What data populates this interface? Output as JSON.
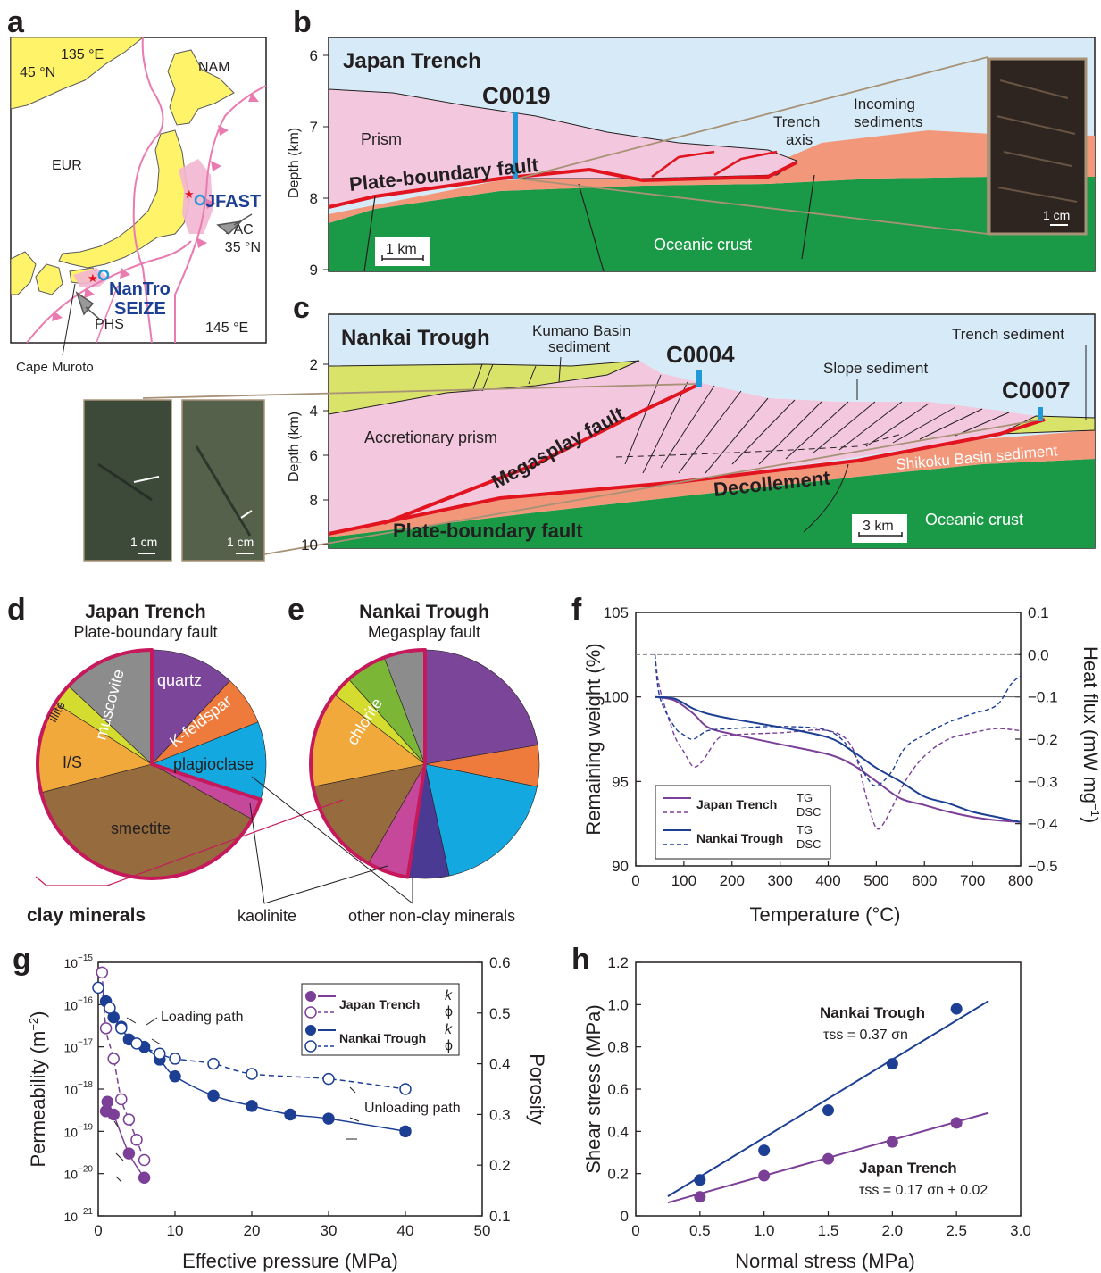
{
  "panels": {
    "a": {
      "label": "a",
      "lon_top": "135 °E",
      "lat_top": "45 °N",
      "lat_mid": "35 °N",
      "lon_bottom": "145 °E",
      "plates": [
        "NAM",
        "EUR",
        "PAC",
        "PHS"
      ],
      "site_jfast": "JFAST",
      "site_nantro_1": "NanTro",
      "site_nantro_2": "SEIZE",
      "cape": "Cape Muroto"
    },
    "b": {
      "label": "b",
      "title": "Japan Trench",
      "ylabel": "Depth (km)",
      "yticks": [
        "6",
        "7",
        "8",
        "9"
      ],
      "site": "C0019",
      "labels": {
        "prism": "Prism",
        "fault": "Plate-boundary fault",
        "axis_1": "Trench",
        "axis_2": "axis",
        "incoming_1": "Incoming",
        "incoming_2": "sediments",
        "crust": "Oceanic crust",
        "scale": "1 km",
        "photo_scale": "1 cm"
      }
    },
    "c": {
      "label": "c",
      "title": "Nankai Trough",
      "ylabel": "Depth (km)",
      "yticks": [
        "2",
        "4",
        "6",
        "8",
        "10"
      ],
      "sites": [
        "C0004",
        "C0007"
      ],
      "labels": {
        "kumano_1": "Kumano Basin",
        "kumano_2": "sediment",
        "slope": "Slope sediment",
        "trench_sed": "Trench sediment",
        "prism": "Accretionary prism",
        "megasplay": "Megasplay fault",
        "decollement": "Decollement",
        "shikoku": "Shikoku Basin sediment",
        "plate_boundary": "Plate-boundary fault",
        "crust": "Oceanic crust",
        "scale": "3 km",
        "photo_scale": "1 cm"
      }
    },
    "d": {
      "label": "d",
      "title": "Japan Trench",
      "subtitle": "Plate-boundary fault",
      "slice_labels": [
        "quartz",
        "K-feldspar",
        "plagioclase",
        "smectite",
        "I/S",
        "illite",
        "muscovite"
      ]
    },
    "e": {
      "label": "e",
      "title": "Nankai Trough",
      "subtitle": "Megasplay fault",
      "slice_labels": [
        "chlorite"
      ]
    },
    "de_callouts": {
      "clay": "clay minerals",
      "kaolinite": "kaolinite",
      "other": "other non-clay minerals"
    },
    "f": {
      "label": "f",
      "xlabel": "Temperature (°C)",
      "ylabel_left": "Remaining weight (%)",
      "ylabel_right": "Heat flux (mW mg",
      "ylabel_right_sup": "−1",
      "ylabel_right_end": ")",
      "xticks": [
        "0",
        "100",
        "200",
        "300",
        "400",
        "500",
        "600",
        "700",
        "800"
      ],
      "yticks_left": [
        "90",
        "95",
        "100",
        "105"
      ],
      "yticks_right": [
        "−0.5",
        "−0.4",
        "−0.3",
        "−0.2",
        "−0.1",
        "0.0",
        "0.1"
      ],
      "legend": {
        "jt": "Japan Trench",
        "nt": "Nankai Trough",
        "tg": "TG",
        "dsc": "DSC"
      }
    },
    "g": {
      "label": "g",
      "xlabel": "Effective pressure (MPa)",
      "ylabel_left": "Permeability (m",
      "ylabel_left_sup": "−2",
      "ylabel_left_end": ")",
      "ylabel_right": "Porosity",
      "xticks": [
        "0",
        "10",
        "20",
        "30",
        "40",
        "50"
      ],
      "yticks_left_exp": [
        "−21",
        "−20",
        "−19",
        "−18",
        "−17",
        "−16",
        "−15"
      ],
      "yticks_right": [
        "0.1",
        "0.2",
        "0.3",
        "0.4",
        "0.5",
        "0.6"
      ],
      "loading": "Loading path",
      "unloading": "Unloading path",
      "legend": {
        "jt": "Japan Trench",
        "nt": "Nankai Trough",
        "k": "k",
        "phi": "ϕ"
      }
    },
    "h": {
      "label": "h",
      "xlabel": "Normal stress (MPa)",
      "ylabel": "Shear stress (MPa)",
      "xticks": [
        "0",
        "0.5",
        "1.0",
        "1.5",
        "2.0",
        "2.5",
        "3.0"
      ],
      "yticks": [
        "0",
        "0.2",
        "0.4",
        "0.6",
        "0.8",
        "1.0",
        "1.2"
      ],
      "nt_name": "Nankai Trough",
      "nt_eq": "τss = 0.37 σn",
      "jt_name": "Japan Trench",
      "jt_eq": "τss = 0.17 σn + 0.02"
    }
  },
  "colors": {
    "jt": "#7b3f98",
    "nt": "#1c3f94",
    "fault": "#e1141f",
    "site": "#1f9ad6",
    "prism": "#f3c8de",
    "crust": "#1a9a47",
    "sediment": "#f2977a",
    "basin": "#d9e36a",
    "sky": "#d6ebf7",
    "land": "#fff36a",
    "clay": "#c6195c"
  },
  "chart_data": [
    {
      "panel": "d",
      "type": "pie",
      "title": "Japan Trench",
      "subtitle": "Plate-boundary fault",
      "slices": [
        {
          "label": "quartz",
          "value": 12,
          "color": "#7b469a"
        },
        {
          "label": "K-feldspar",
          "value": 7,
          "color": "#ee7a3c"
        },
        {
          "label": "plagioclase",
          "value": 11,
          "color": "#13a8e0"
        },
        {
          "label": "kaolinite",
          "value": 3,
          "color": "#c5489b"
        },
        {
          "label": "smectite",
          "value": 38,
          "color": "#966b3d"
        },
        {
          "label": "I/S",
          "value": 13,
          "color": "#f2a93b"
        },
        {
          "label": "illite",
          "value": 3,
          "color": "#d5dc30"
        },
        {
          "label": "muscovite",
          "value": 13,
          "color": "#8c8c8c"
        }
      ]
    },
    {
      "panel": "e",
      "type": "pie",
      "title": "Nankai Trough",
      "subtitle": "Megasplay fault",
      "slices": [
        {
          "label": "quartz",
          "value": 23,
          "color": "#7b469a"
        },
        {
          "label": "K-feldspar",
          "value": 6,
          "color": "#ee7a3c"
        },
        {
          "label": "plagioclase",
          "value": 19,
          "color": "#13a8e0"
        },
        {
          "label": "other non-clay minerals",
          "value": 6,
          "color": "#4b3a93"
        },
        {
          "label": "kaolinite",
          "value": 6,
          "color": "#c5489b"
        },
        {
          "label": "smectite",
          "value": 14,
          "color": "#966b3d"
        },
        {
          "label": "I/S",
          "value": 14,
          "color": "#f2a93b"
        },
        {
          "label": "illite",
          "value": 3,
          "color": "#d5dc30"
        },
        {
          "label": "chlorite",
          "value": 6,
          "color": "#7bb637"
        },
        {
          "label": "muscovite",
          "value": 6,
          "color": "#8c8c8c"
        }
      ]
    },
    {
      "panel": "f",
      "type": "line",
      "xlabel": "Temperature (°C)",
      "xlim": [
        0,
        800
      ],
      "ylim_left": [
        90,
        105
      ],
      "ylim_right": [
        -0.5,
        0.1
      ],
      "series": [
        {
          "name": "Japan Trench TG",
          "axis": "left",
          "style": "solid",
          "color": "#7b3f98",
          "x": [
            40,
            80,
            120,
            150,
            200,
            300,
            400,
            450,
            500,
            550,
            600,
            650,
            700,
            750,
            800
          ],
          "y": [
            100,
            99.8,
            99.0,
            98.2,
            97.8,
            97.2,
            96.6,
            96.0,
            95.0,
            94.0,
            93.6,
            93.2,
            92.9,
            92.7,
            92.6
          ]
        },
        {
          "name": "Japan Trench DSC",
          "axis": "right",
          "style": "dashed",
          "color": "#7b3f98",
          "x": [
            40,
            50,
            80,
            100,
            120,
            140,
            170,
            200,
            300,
            400,
            450,
            480,
            500,
            520,
            560,
            600,
            650,
            700,
            750,
            800
          ],
          "y": [
            0.0,
            -0.08,
            -0.19,
            -0.23,
            -0.265,
            -0.25,
            -0.2,
            -0.19,
            -0.185,
            -0.18,
            -0.22,
            -0.34,
            -0.41,
            -0.39,
            -0.3,
            -0.24,
            -0.2,
            -0.185,
            -0.175,
            -0.18
          ]
        },
        {
          "name": "Nankai Trough TG",
          "axis": "left",
          "style": "solid",
          "color": "#1c3f94",
          "x": [
            40,
            80,
            120,
            150,
            200,
            300,
            400,
            450,
            500,
            550,
            600,
            650,
            700,
            750,
            800
          ],
          "y": [
            100,
            99.9,
            99.3,
            99.0,
            98.7,
            98.2,
            97.6,
            96.8,
            95.8,
            95.0,
            94.1,
            93.7,
            93.2,
            92.9,
            92.6
          ]
        },
        {
          "name": "Nankai Trough DSC",
          "axis": "right",
          "style": "dashed",
          "color": "#1c3f94",
          "x": [
            40,
            50,
            80,
            100,
            120,
            150,
            200,
            300,
            400,
            450,
            480,
            500,
            530,
            560,
            600,
            650,
            700,
            750,
            780,
            800
          ],
          "y": [
            0.0,
            -0.1,
            -0.17,
            -0.19,
            -0.2,
            -0.18,
            -0.175,
            -0.17,
            -0.18,
            -0.23,
            -0.29,
            -0.31,
            -0.28,
            -0.22,
            -0.19,
            -0.16,
            -0.14,
            -0.12,
            -0.07,
            -0.05
          ]
        }
      ]
    },
    {
      "panel": "g",
      "type": "line",
      "xlabel": "Effective pressure (MPa)",
      "ylabel_left": "Permeability (m−2)",
      "ylabel_right": "Porosity",
      "xlim": [
        0,
        50
      ],
      "ylim_left_log10": [
        -21,
        -15
      ],
      "ylim_right": [
        0.1,
        0.6
      ],
      "series": [
        {
          "name": "Japan Trench k",
          "axis": "left",
          "marker": "filled",
          "color": "#7b3f98",
          "x": [
            1,
            1.2,
            2,
            4,
            6
          ],
          "y": [
            3e-19,
            5e-19,
            2.5e-19,
            3e-20,
            8e-21
          ]
        },
        {
          "name": "Japan Trench ϕ",
          "axis": "right",
          "marker": "open",
          "color": "#7b3f98",
          "x": [
            0.5,
            1,
            2,
            3,
            4,
            5,
            6
          ],
          "y": [
            0.58,
            0.47,
            0.41,
            0.33,
            0.29,
            0.25,
            0.21
          ]
        },
        {
          "name": "Nankai Trough k",
          "axis": "left",
          "marker": "filled",
          "color": "#1c3f94",
          "x": [
            1,
            2,
            3,
            4,
            6,
            8,
            10,
            15,
            20,
            25,
            30,
            40
          ],
          "y": [
            1.2e-16,
            5e-17,
            3e-17,
            1.5e-17,
            1e-17,
            5e-18,
            2e-18,
            7e-19,
            4e-19,
            2.5e-19,
            2e-19,
            1e-19
          ]
        },
        {
          "name": "Nankai Trough ϕ",
          "axis": "right",
          "marker": "open",
          "color": "#1c3f94",
          "x": [
            0,
            1.5,
            3,
            5,
            8,
            10,
            15,
            20,
            30,
            40
          ],
          "y": [
            0.55,
            0.51,
            0.47,
            0.44,
            0.42,
            0.41,
            0.4,
            0.38,
            0.37,
            0.35
          ]
        }
      ]
    },
    {
      "panel": "h",
      "type": "scatter",
      "xlabel": "Normal stress (MPa)",
      "ylabel": "Shear stress (MPa)",
      "xlim": [
        0,
        3.0
      ],
      "ylim": [
        0,
        1.2
      ],
      "series": [
        {
          "name": "Nankai Trough",
          "color": "#1c3f94",
          "x": [
            0.5,
            1.0,
            1.5,
            2.0,
            2.5
          ],
          "y": [
            0.17,
            0.31,
            0.5,
            0.72,
            0.98
          ],
          "fit": {
            "slope": 0.37,
            "intercept": 0.0
          }
        },
        {
          "name": "Japan Trench",
          "color": "#7b3f98",
          "x": [
            0.5,
            1.0,
            1.5,
            2.0,
            2.5
          ],
          "y": [
            0.09,
            0.19,
            0.27,
            0.35,
            0.44
          ],
          "fit": {
            "slope": 0.17,
            "intercept": 0.02
          }
        }
      ]
    }
  ]
}
